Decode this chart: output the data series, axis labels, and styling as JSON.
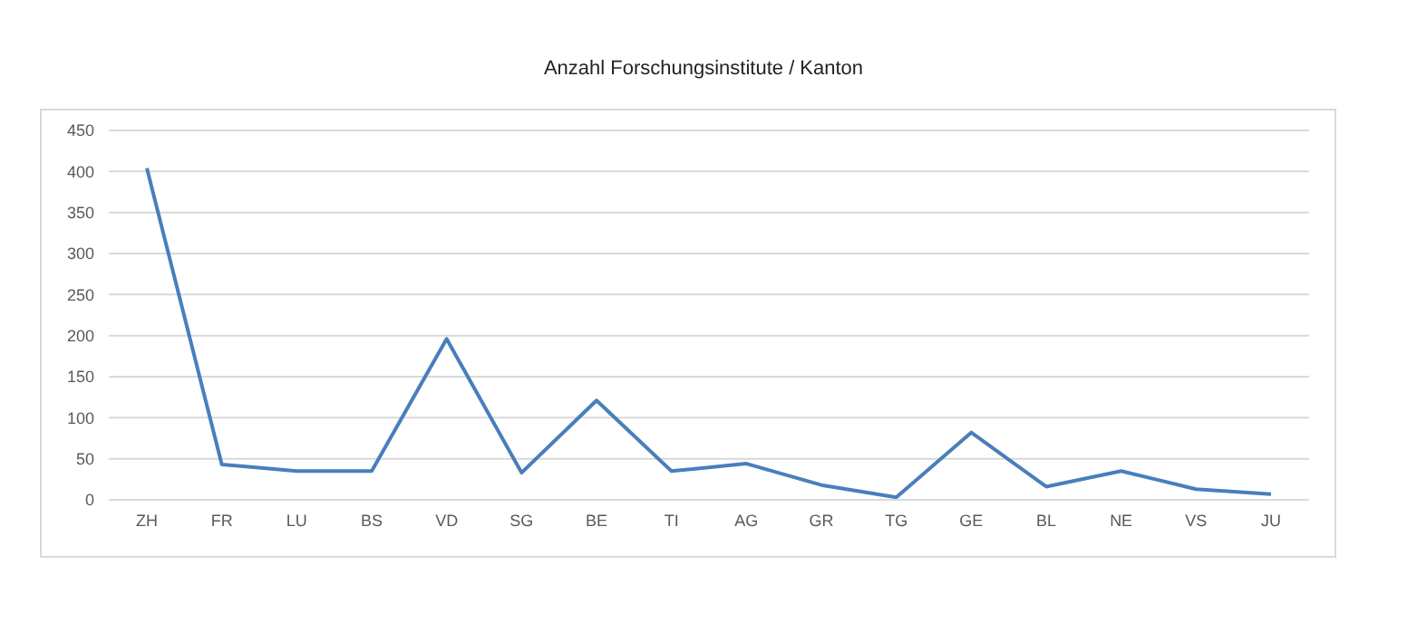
{
  "chart_data": {
    "type": "line",
    "title": "Anzahl Forschungsinstitute / Kanton",
    "categories": [
      "ZH",
      "FR",
      "LU",
      "BS",
      "VD",
      "SG",
      "BE",
      "TI",
      "AG",
      "GR",
      "TG",
      "GE",
      "BL",
      "NE",
      "VS",
      "JU"
    ],
    "series": [
      {
        "color": "#4a7ebb",
        "values": [
          404,
          43,
          35,
          35,
          196,
          33,
          121,
          35,
          44,
          18,
          3,
          82,
          16,
          35,
          13,
          7
        ]
      }
    ],
    "ylim": [
      0,
      450
    ],
    "yticks": [
      0,
      50,
      100,
      150,
      200,
      250,
      300,
      350,
      400,
      450
    ],
    "grid": "y",
    "marker": "none",
    "line_style": "solid"
  }
}
